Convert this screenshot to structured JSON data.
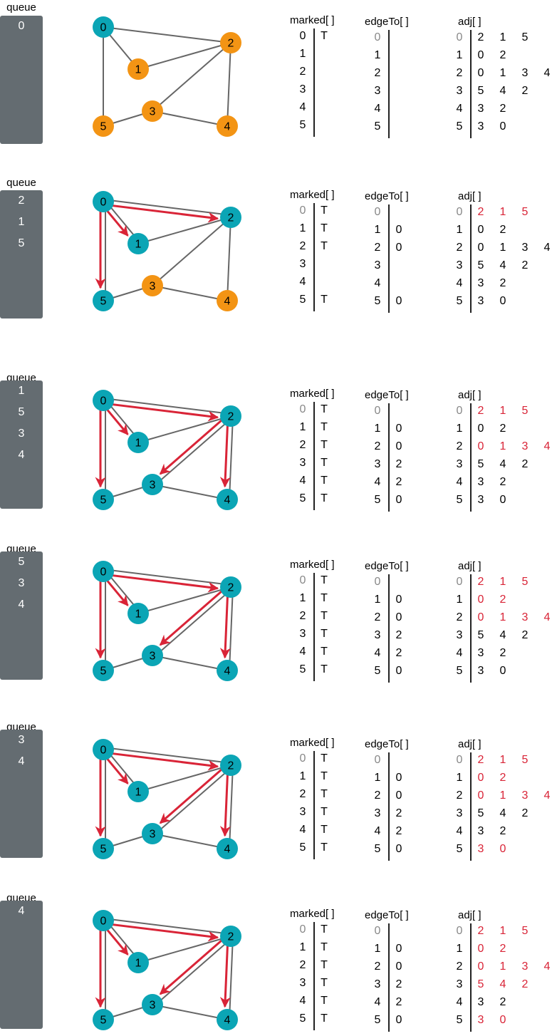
{
  "colors": {
    "teal": "#0ba5b5",
    "orange": "#f39414",
    "red": "#d92437",
    "gray": "#646c71",
    "edge": "#666666",
    "dim": "#888888"
  },
  "labels": {
    "queue": "queue",
    "marked": "marked[ ]",
    "edgeTo": "edgeTo[ ]",
    "adj": "adj[ ]",
    "true_mark": "T"
  },
  "graph": {
    "nodes": [
      "0",
      "1",
      "2",
      "3",
      "4",
      "5"
    ],
    "edges": [
      [
        "0",
        "1"
      ],
      [
        "0",
        "2"
      ],
      [
        "0",
        "5"
      ],
      [
        "1",
        "2"
      ],
      [
        "2",
        "3"
      ],
      [
        "2",
        "4"
      ],
      [
        "3",
        "4"
      ],
      [
        "3",
        "5"
      ]
    ]
  },
  "adj": [
    [
      "2",
      "1",
      "5"
    ],
    [
      "0",
      "2"
    ],
    [
      "0",
      "1",
      "3",
      "4"
    ],
    [
      "5",
      "4",
      "2"
    ],
    [
      "3",
      "2"
    ],
    [
      "3",
      "0"
    ]
  ],
  "steps": [
    {
      "queue": [
        "0"
      ],
      "visited": [
        "0"
      ],
      "tree_edges": [],
      "marked": [
        "T",
        "",
        "",
        "",
        "",
        ""
      ],
      "edgeTo": [
        "",
        "",
        "",
        "",
        "",
        ""
      ],
      "adj_red": [
        0,
        0,
        0,
        0,
        0,
        0
      ]
    },
    {
      "queue": [
        "2",
        "1",
        "5"
      ],
      "visited": [
        "0",
        "1",
        "2",
        "5"
      ],
      "tree_edges": [
        [
          "0",
          "2"
        ],
        [
          "0",
          "1"
        ],
        [
          "0",
          "5"
        ]
      ],
      "marked": [
        "T",
        "T",
        "T",
        "",
        "",
        "T"
      ],
      "edgeTo": [
        "",
        "0",
        "0",
        "",
        "",
        "0"
      ],
      "adj_red": [
        3,
        0,
        0,
        0,
        0,
        0
      ]
    },
    {
      "queue": [
        "1",
        "5",
        "3",
        "4"
      ],
      "visited": [
        "0",
        "1",
        "2",
        "3",
        "4",
        "5"
      ],
      "tree_edges": [
        [
          "0",
          "2"
        ],
        [
          "0",
          "1"
        ],
        [
          "0",
          "5"
        ],
        [
          "2",
          "3"
        ],
        [
          "2",
          "4"
        ]
      ],
      "marked": [
        "T",
        "T",
        "T",
        "T",
        "T",
        "T"
      ],
      "edgeTo": [
        "",
        "0",
        "0",
        "2",
        "2",
        "0"
      ],
      "adj_red": [
        3,
        0,
        4,
        0,
        0,
        0
      ]
    },
    {
      "queue": [
        "5",
        "3",
        "4"
      ],
      "visited": [
        "0",
        "1",
        "2",
        "3",
        "4",
        "5"
      ],
      "tree_edges": [
        [
          "0",
          "2"
        ],
        [
          "0",
          "1"
        ],
        [
          "0",
          "5"
        ],
        [
          "2",
          "3"
        ],
        [
          "2",
          "4"
        ]
      ],
      "marked": [
        "T",
        "T",
        "T",
        "T",
        "T",
        "T"
      ],
      "edgeTo": [
        "",
        "0",
        "0",
        "2",
        "2",
        "0"
      ],
      "adj_red": [
        3,
        2,
        4,
        0,
        0,
        0
      ]
    },
    {
      "queue": [
        "3",
        "4"
      ],
      "visited": [
        "0",
        "1",
        "2",
        "3",
        "4",
        "5"
      ],
      "tree_edges": [
        [
          "0",
          "2"
        ],
        [
          "0",
          "1"
        ],
        [
          "0",
          "5"
        ],
        [
          "2",
          "3"
        ],
        [
          "2",
          "4"
        ]
      ],
      "marked": [
        "T",
        "T",
        "T",
        "T",
        "T",
        "T"
      ],
      "edgeTo": [
        "",
        "0",
        "0",
        "2",
        "2",
        "0"
      ],
      "adj_red": [
        3,
        2,
        4,
        0,
        0,
        2
      ]
    },
    {
      "queue": [
        "4"
      ],
      "visited": [
        "0",
        "1",
        "2",
        "3",
        "4",
        "5"
      ],
      "tree_edges": [
        [
          "0",
          "2"
        ],
        [
          "0",
          "1"
        ],
        [
          "0",
          "5"
        ],
        [
          "2",
          "3"
        ],
        [
          "2",
          "4"
        ]
      ],
      "marked": [
        "T",
        "T",
        "T",
        "T",
        "T",
        "T"
      ],
      "edgeTo": [
        "",
        "0",
        "0",
        "2",
        "2",
        "0"
      ],
      "adj_red": [
        3,
        2,
        4,
        3,
        0,
        2
      ]
    }
  ]
}
